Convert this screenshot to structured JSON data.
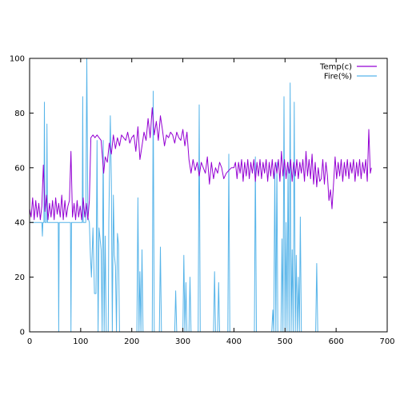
{
  "chart_data": {
    "type": "line",
    "xlim": [
      0,
      700
    ],
    "ylim": [
      0,
      100
    ],
    "x_ticks": [
      0,
      100,
      200,
      300,
      400,
      500,
      600,
      700
    ],
    "y_ticks": [
      0,
      20,
      40,
      60,
      80,
      100
    ],
    "grid": false,
    "legend_placement": "top-right",
    "series": [
      {
        "name": "Temp(c)",
        "color": "#9400d3",
        "points": [
          [
            0,
            45
          ],
          [
            3,
            42
          ],
          [
            6,
            49
          ],
          [
            9,
            41
          ],
          [
            12,
            48
          ],
          [
            15,
            42
          ],
          [
            18,
            47
          ],
          [
            21,
            41
          ],
          [
            24,
            46
          ],
          [
            27,
            61
          ],
          [
            30,
            44
          ],
          [
            33,
            50
          ],
          [
            36,
            41
          ],
          [
            39,
            47
          ],
          [
            42,
            42
          ],
          [
            45,
            48
          ],
          [
            48,
            41
          ],
          [
            51,
            49
          ],
          [
            54,
            43
          ],
          [
            57,
            47
          ],
          [
            60,
            42
          ],
          [
            63,
            50
          ],
          [
            66,
            41
          ],
          [
            69,
            48
          ],
          [
            72,
            42
          ],
          [
            75,
            46
          ],
          [
            78,
            48
          ],
          [
            81,
            66
          ],
          [
            84,
            42
          ],
          [
            87,
            47
          ],
          [
            90,
            41
          ],
          [
            93,
            48
          ],
          [
            96,
            42
          ],
          [
            99,
            46
          ],
          [
            102,
            41
          ],
          [
            105,
            49
          ],
          [
            108,
            42
          ],
          [
            111,
            47
          ],
          [
            114,
            41
          ],
          [
            117,
            48
          ],
          [
            120,
            71
          ],
          [
            124,
            72
          ],
          [
            128,
            71
          ],
          [
            132,
            72
          ],
          [
            136,
            71
          ],
          [
            140,
            70
          ],
          [
            145,
            58
          ],
          [
            148,
            64
          ],
          [
            152,
            62
          ],
          [
            156,
            69
          ],
          [
            160,
            65
          ],
          [
            164,
            72
          ],
          [
            168,
            67
          ],
          [
            172,
            71
          ],
          [
            176,
            68
          ],
          [
            180,
            72
          ],
          [
            184,
            71
          ],
          [
            188,
            70
          ],
          [
            192,
            73
          ],
          [
            196,
            69
          ],
          [
            200,
            71
          ],
          [
            204,
            72
          ],
          [
            208,
            66
          ],
          [
            212,
            75
          ],
          [
            216,
            63
          ],
          [
            220,
            68
          ],
          [
            224,
            73
          ],
          [
            228,
            70
          ],
          [
            232,
            78
          ],
          [
            236,
            71
          ],
          [
            240,
            82
          ],
          [
            244,
            72
          ],
          [
            248,
            77
          ],
          [
            252,
            70
          ],
          [
            256,
            79
          ],
          [
            260,
            74
          ],
          [
            264,
            68
          ],
          [
            268,
            72
          ],
          [
            272,
            71
          ],
          [
            276,
            73
          ],
          [
            280,
            72
          ],
          [
            284,
            69
          ],
          [
            288,
            73
          ],
          [
            292,
            71
          ],
          [
            296,
            70
          ],
          [
            300,
            74
          ],
          [
            304,
            68
          ],
          [
            308,
            73
          ],
          [
            312,
            63
          ],
          [
            316,
            58
          ],
          [
            320,
            63
          ],
          [
            324,
            59
          ],
          [
            328,
            62
          ],
          [
            332,
            57
          ],
          [
            336,
            62
          ],
          [
            340,
            60
          ],
          [
            344,
            58
          ],
          [
            348,
            64
          ],
          [
            352,
            54
          ],
          [
            356,
            62
          ],
          [
            360,
            56
          ],
          [
            364,
            60
          ],
          [
            368,
            58
          ],
          [
            372,
            62
          ],
          [
            376,
            60
          ],
          [
            380,
            56
          ],
          [
            385,
            58
          ],
          [
            390,
            59
          ],
          [
            395,
            60
          ],
          [
            400,
            60
          ],
          [
            403,
            62
          ],
          [
            406,
            56
          ],
          [
            409,
            62
          ],
          [
            412,
            58
          ],
          [
            415,
            63
          ],
          [
            418,
            55
          ],
          [
            421,
            62
          ],
          [
            424,
            57
          ],
          [
            427,
            63
          ],
          [
            430,
            56
          ],
          [
            433,
            62
          ],
          [
            436,
            58
          ],
          [
            439,
            63
          ],
          [
            442,
            55
          ],
          [
            445,
            62
          ],
          [
            448,
            57
          ],
          [
            451,
            63
          ],
          [
            454,
            56
          ],
          [
            457,
            62
          ],
          [
            460,
            58
          ],
          [
            463,
            63
          ],
          [
            466,
            55
          ],
          [
            469,
            62
          ],
          [
            472,
            57
          ],
          [
            475,
            63
          ],
          [
            478,
            56
          ],
          [
            481,
            62
          ],
          [
            484,
            58
          ],
          [
            487,
            63
          ],
          [
            490,
            55
          ],
          [
            493,
            66
          ],
          [
            496,
            57
          ],
          [
            499,
            63
          ],
          [
            502,
            56
          ],
          [
            505,
            62
          ],
          [
            508,
            58
          ],
          [
            511,
            63
          ],
          [
            514,
            55
          ],
          [
            517,
            62
          ],
          [
            520,
            57
          ],
          [
            523,
            63
          ],
          [
            526,
            56
          ],
          [
            529,
            62
          ],
          [
            532,
            58
          ],
          [
            535,
            63
          ],
          [
            538,
            55
          ],
          [
            541,
            66
          ],
          [
            544,
            57
          ],
          [
            547,
            63
          ],
          [
            550,
            56
          ],
          [
            553,
            65
          ],
          [
            556,
            54
          ],
          [
            559,
            62
          ],
          [
            562,
            53
          ],
          [
            565,
            60
          ],
          [
            568,
            55
          ],
          [
            571,
            56
          ],
          [
            574,
            63
          ],
          [
            577,
            54
          ],
          [
            580,
            62
          ],
          [
            583,
            57
          ],
          [
            586,
            48
          ],
          [
            589,
            52
          ],
          [
            592,
            45
          ],
          [
            595,
            54
          ],
          [
            598,
            64
          ],
          [
            601,
            56
          ],
          [
            604,
            62
          ],
          [
            607,
            57
          ],
          [
            610,
            63
          ],
          [
            613,
            55
          ],
          [
            616,
            62
          ],
          [
            619,
            57
          ],
          [
            622,
            63
          ],
          [
            625,
            56
          ],
          [
            628,
            62
          ],
          [
            631,
            58
          ],
          [
            634,
            63
          ],
          [
            637,
            55
          ],
          [
            640,
            62
          ],
          [
            643,
            57
          ],
          [
            646,
            63
          ],
          [
            649,
            56
          ],
          [
            652,
            62
          ],
          [
            655,
            58
          ],
          [
            658,
            63
          ],
          [
            661,
            55
          ],
          [
            664,
            74
          ],
          [
            667,
            58
          ],
          [
            669,
            60
          ]
        ]
      },
      {
        "name": "Fire(%)",
        "color": "#56b4e9",
        "points": [
          [
            0,
            40
          ],
          [
            24,
            40
          ],
          [
            25,
            35
          ],
          [
            26,
            40
          ],
          [
            28,
            40
          ],
          [
            29,
            84
          ],
          [
            30,
            40
          ],
          [
            33,
            40
          ],
          [
            34,
            76
          ],
          [
            35,
            40
          ],
          [
            56,
            40
          ],
          [
            57,
            0
          ],
          [
            58,
            40
          ],
          [
            80,
            40
          ],
          [
            81,
            0
          ],
          [
            82,
            40
          ],
          [
            103,
            40
          ],
          [
            104,
            86
          ],
          [
            105,
            40
          ],
          [
            110,
            40
          ],
          [
            112,
            100
          ],
          [
            114,
            42
          ],
          [
            117,
            40
          ],
          [
            119,
            28
          ],
          [
            121,
            20
          ],
          [
            124,
            38
          ],
          [
            127,
            14
          ],
          [
            130,
            14
          ],
          [
            132,
            70
          ],
          [
            134,
            0
          ],
          [
            136,
            38
          ],
          [
            138,
            34
          ],
          [
            140,
            30
          ],
          [
            142,
            0
          ],
          [
            144,
            70
          ],
          [
            146,
            0
          ],
          [
            148,
            35
          ],
          [
            150,
            0
          ],
          [
            154,
            0
          ],
          [
            155,
            40
          ],
          [
            158,
            79
          ],
          [
            160,
            55
          ],
          [
            162,
            0
          ],
          [
            164,
            50
          ],
          [
            166,
            28
          ],
          [
            168,
            24
          ],
          [
            170,
            0
          ],
          [
            172,
            36
          ],
          [
            174,
            32
          ],
          [
            176,
            0
          ],
          [
            178,
            0
          ],
          [
            180,
            0
          ],
          [
            210,
            0
          ],
          [
            212,
            49
          ],
          [
            214,
            0
          ],
          [
            216,
            22
          ],
          [
            218,
            0
          ],
          [
            220,
            30
          ],
          [
            222,
            0
          ],
          [
            224,
            0
          ],
          [
            240,
            0
          ],
          [
            242,
            88
          ],
          [
            244,
            0
          ],
          [
            254,
            0
          ],
          [
            256,
            31
          ],
          [
            258,
            0
          ],
          [
            260,
            0
          ],
          [
            284,
            0
          ],
          [
            286,
            15
          ],
          [
            288,
            0
          ],
          [
            300,
            0
          ],
          [
            302,
            28
          ],
          [
            304,
            0
          ],
          [
            306,
            18
          ],
          [
            308,
            0
          ],
          [
            312,
            0
          ],
          [
            314,
            20
          ],
          [
            316,
            0
          ],
          [
            330,
            0
          ],
          [
            332,
            83
          ],
          [
            334,
            0
          ],
          [
            360,
            0
          ],
          [
            362,
            22
          ],
          [
            364,
            0
          ],
          [
            368,
            0
          ],
          [
            370,
            18
          ],
          [
            372,
            0
          ],
          [
            388,
            0
          ],
          [
            390,
            65
          ],
          [
            392,
            0
          ],
          [
            440,
            0
          ],
          [
            442,
            64
          ],
          [
            444,
            0
          ],
          [
            474,
            0
          ],
          [
            476,
            8
          ],
          [
            478,
            0
          ],
          [
            480,
            60
          ],
          [
            482,
            0
          ],
          [
            484,
            62
          ],
          [
            486,
            0
          ],
          [
            488,
            0
          ],
          [
            492,
            0
          ],
          [
            494,
            34
          ],
          [
            496,
            0
          ],
          [
            498,
            86
          ],
          [
            500,
            0
          ],
          [
            502,
            40
          ],
          [
            504,
            0
          ],
          [
            506,
            62
          ],
          [
            508,
            0
          ],
          [
            510,
            91
          ],
          [
            512,
            0
          ],
          [
            514,
            30
          ],
          [
            516,
            0
          ],
          [
            518,
            84
          ],
          [
            520,
            0
          ],
          [
            522,
            28
          ],
          [
            524,
            0
          ],
          [
            526,
            20
          ],
          [
            528,
            0
          ],
          [
            530,
            42
          ],
          [
            532,
            0
          ],
          [
            560,
            0
          ],
          [
            562,
            25
          ],
          [
            564,
            0
          ],
          [
            669,
            0
          ]
        ]
      }
    ]
  }
}
